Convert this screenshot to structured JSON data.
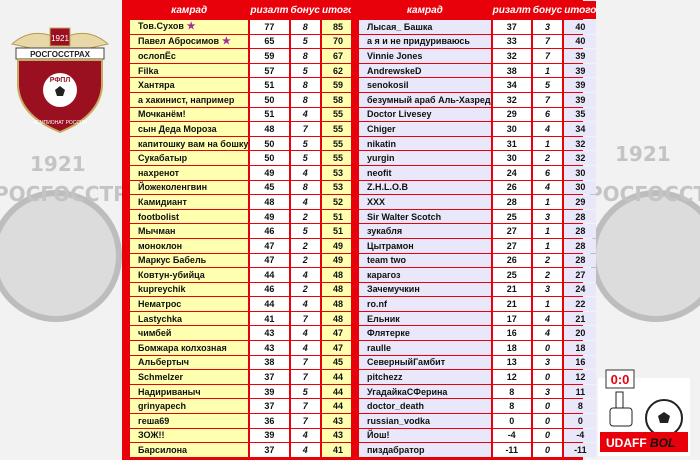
{
  "logos": {
    "left": {
      "year": "1921",
      "sponsor": "РОСГОССТРАХ",
      "league": "РФПЛ",
      "ring": "ЧЕМПИОНАТ РОССИИ"
    },
    "right": {
      "score": "0:0",
      "brand_a": "UDAFF",
      "brand_b": "BOL"
    }
  },
  "colors": {
    "header": "#e8000b",
    "left_name_bg": "#ffffb0",
    "right_name_bg": "#e8e8fa"
  },
  "table_headers": [
    "камрад",
    "ризалт",
    "бонус",
    "итого"
  ],
  "left_table": [
    [
      "Тов.Сухов",
      77,
      8,
      85,
      true
    ],
    [
      "Павел Абросимов",
      65,
      5,
      70,
      true
    ],
    [
      "ослопЁс",
      59,
      8,
      67
    ],
    [
      "Filka",
      57,
      5,
      62
    ],
    [
      "Хантяра",
      51,
      8,
      59
    ],
    [
      "а хакинист, например",
      50,
      8,
      58
    ],
    [
      "Мочканём!",
      51,
      4,
      55
    ],
    [
      "сын Деда Мороза",
      48,
      7,
      55
    ],
    [
      "капитошку вам на бошку",
      50,
      5,
      55
    ],
    [
      "Сукабатыр",
      50,
      5,
      55
    ],
    [
      "нахренот",
      49,
      4,
      53
    ],
    [
      "Йожеколенгвин",
      45,
      8,
      53
    ],
    [
      "Камидиант",
      48,
      4,
      52
    ],
    [
      "footbolist",
      49,
      2,
      51
    ],
    [
      "Мычман",
      46,
      5,
      51
    ],
    [
      "моноклон",
      47,
      2,
      49
    ],
    [
      "Маркус Бабель",
      47,
      2,
      49
    ],
    [
      "Ковтун-убийца",
      44,
      4,
      48
    ],
    [
      "kupreychik",
      46,
      2,
      48
    ],
    [
      "Нематрос",
      44,
      4,
      48
    ],
    [
      "Lastychka",
      41,
      7,
      48
    ],
    [
      "чимбей",
      43,
      4,
      47
    ],
    [
      "Бомжара колхозная",
      43,
      4,
      47
    ],
    [
      "Альбертыч",
      38,
      7,
      45
    ],
    [
      "Schmelzer",
      37,
      7,
      44
    ],
    [
      "Надириваныч",
      39,
      5,
      44
    ],
    [
      "grinyapech",
      37,
      7,
      44
    ],
    [
      "геша69",
      36,
      7,
      43
    ],
    [
      "ЗОЖ!!",
      39,
      4,
      43
    ],
    [
      "Барсилона",
      37,
      4,
      41
    ]
  ],
  "right_table": [
    [
      "Лысая_ Башка",
      37,
      3,
      40
    ],
    [
      "а я и не придуриваюсь",
      33,
      7,
      40
    ],
    [
      "Vinnie Jones",
      32,
      7,
      39
    ],
    [
      "AndrewskeD",
      38,
      1,
      39
    ],
    [
      "senokosil",
      34,
      5,
      39
    ],
    [
      "безумный араб Аль-Хазред",
      32,
      7,
      39
    ],
    [
      "Doctor Livesey",
      29,
      6,
      35
    ],
    [
      "Chiger",
      30,
      4,
      34
    ],
    [
      "nikatin",
      31,
      1,
      32
    ],
    [
      "yurgin",
      30,
      2,
      32
    ],
    [
      "neofit",
      24,
      6,
      30
    ],
    [
      "Z.H.L.O.B",
      26,
      4,
      30
    ],
    [
      "XXX",
      28,
      1,
      29
    ],
    [
      "Sir Walter Scotch",
      25,
      3,
      28
    ],
    [
      "зукабля",
      27,
      1,
      28
    ],
    [
      "Цытрамон",
      27,
      1,
      28
    ],
    [
      "team two",
      26,
      2,
      28
    ],
    [
      "карагоз",
      25,
      2,
      27
    ],
    [
      "Зачемучкин",
      21,
      3,
      24
    ],
    [
      "ro.nf",
      21,
      1,
      22
    ],
    [
      "Ельник",
      17,
      4,
      21
    ],
    [
      "Флятерке",
      16,
      4,
      20
    ],
    [
      "raulle",
      18,
      0,
      18
    ],
    [
      "СеверныйГамбит",
      13,
      3,
      16
    ],
    [
      "pitchezz",
      12,
      0,
      12
    ],
    [
      "УгадайкаСФерина",
      8,
      3,
      11
    ],
    [
      "doctor_death",
      8,
      0,
      8
    ],
    [
      "russian_vodka",
      0,
      0,
      0
    ],
    [
      "Йош!",
      -4,
      0,
      -4
    ],
    [
      "пиздабратор",
      -11,
      0,
      -11
    ]
  ]
}
